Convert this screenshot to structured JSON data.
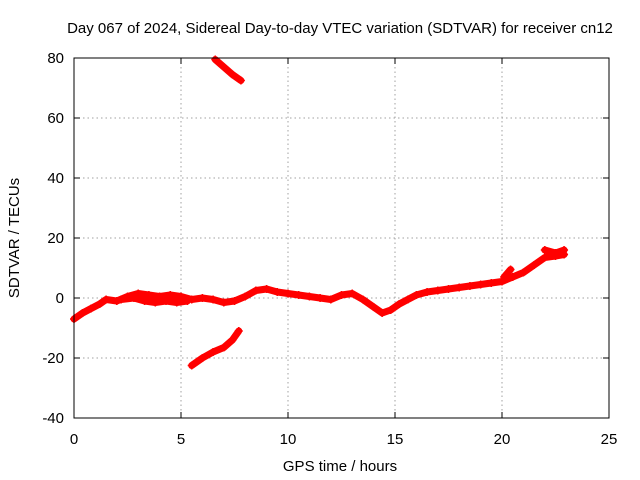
{
  "chart_data": {
    "type": "scatter",
    "title": "Day 067 of 2024, Sidereal Day-to-day VTEC variation (SDTVAR) for receiver cn12",
    "xlabel": "GPS time / hours",
    "ylabel": "SDTVAR / TECUs",
    "xlim": [
      0,
      25
    ],
    "ylim": [
      -40,
      80
    ],
    "xticks": [
      "0",
      "5",
      "10",
      "15",
      "20",
      "25"
    ],
    "yticks": [
      "-40",
      "-20",
      "0",
      "20",
      "40",
      "60",
      "80"
    ],
    "grid": true,
    "marker_color": "#ff0000",
    "series": [
      {
        "name": "main-band",
        "points": [
          [
            0.0,
            -7.0
          ],
          [
            0.4,
            -5.0
          ],
          [
            0.8,
            -3.5
          ],
          [
            1.2,
            -2.0
          ],
          [
            1.5,
            -0.5
          ],
          [
            2.0,
            -1.0
          ],
          [
            2.5,
            0.5
          ],
          [
            3.0,
            1.5
          ],
          [
            3.5,
            1.0
          ],
          [
            4.0,
            0.5
          ],
          [
            4.5,
            1.0
          ],
          [
            5.0,
            0.5
          ],
          [
            5.5,
            -0.5
          ],
          [
            6.0,
            0.0
          ],
          [
            6.5,
            -0.5
          ],
          [
            7.0,
            -1.5
          ],
          [
            7.5,
            -1.0
          ],
          [
            8.0,
            0.5
          ],
          [
            8.5,
            2.5
          ],
          [
            9.0,
            3.0
          ],
          [
            9.5,
            2.0
          ],
          [
            10.0,
            1.5
          ],
          [
            10.5,
            1.0
          ],
          [
            11.0,
            0.5
          ],
          [
            11.5,
            0.0
          ],
          [
            12.0,
            -0.5
          ],
          [
            12.5,
            1.0
          ],
          [
            13.0,
            1.5
          ],
          [
            13.5,
            -0.5
          ],
          [
            14.0,
            -3.0
          ],
          [
            14.4,
            -5.0
          ],
          [
            14.8,
            -4.0
          ],
          [
            15.2,
            -2.0
          ],
          [
            15.6,
            -0.5
          ],
          [
            16.0,
            1.0
          ],
          [
            16.5,
            2.0
          ],
          [
            17.0,
            2.5
          ],
          [
            17.5,
            3.0
          ],
          [
            18.0,
            3.5
          ],
          [
            18.5,
            4.0
          ],
          [
            19.0,
            4.5
          ],
          [
            19.5,
            5.0
          ],
          [
            20.0,
            5.5
          ],
          [
            20.5,
            7.0
          ],
          [
            21.0,
            8.5
          ],
          [
            21.5,
            11.0
          ],
          [
            22.0,
            13.5
          ],
          [
            22.5,
            14.0
          ],
          [
            22.9,
            14.5
          ]
        ]
      },
      {
        "name": "branch-1",
        "points": [
          [
            2.2,
            -0.5
          ],
          [
            2.8,
            0.0
          ],
          [
            3.3,
            -1.0
          ],
          [
            3.8,
            -1.5
          ],
          [
            4.3,
            -1.0
          ],
          [
            4.8,
            -1.5
          ],
          [
            5.3,
            -1.0
          ]
        ]
      },
      {
        "name": "upper-branch",
        "points": [
          [
            6.6,
            79.5
          ],
          [
            7.0,
            77.0
          ],
          [
            7.4,
            74.5
          ],
          [
            7.8,
            72.5
          ]
        ]
      },
      {
        "name": "lower-branch",
        "points": [
          [
            5.5,
            -22.5
          ],
          [
            6.0,
            -20.0
          ],
          [
            6.5,
            -18.0
          ],
          [
            7.0,
            -16.5
          ],
          [
            7.4,
            -14.0
          ],
          [
            7.7,
            -11.0
          ]
        ]
      },
      {
        "name": "branch-2",
        "points": [
          [
            20.1,
            7.0
          ],
          [
            20.4,
            9.5
          ]
        ]
      },
      {
        "name": "branch-3",
        "points": [
          [
            22.0,
            16.0
          ],
          [
            22.5,
            15.0
          ],
          [
            22.9,
            16.0
          ]
        ]
      }
    ]
  }
}
